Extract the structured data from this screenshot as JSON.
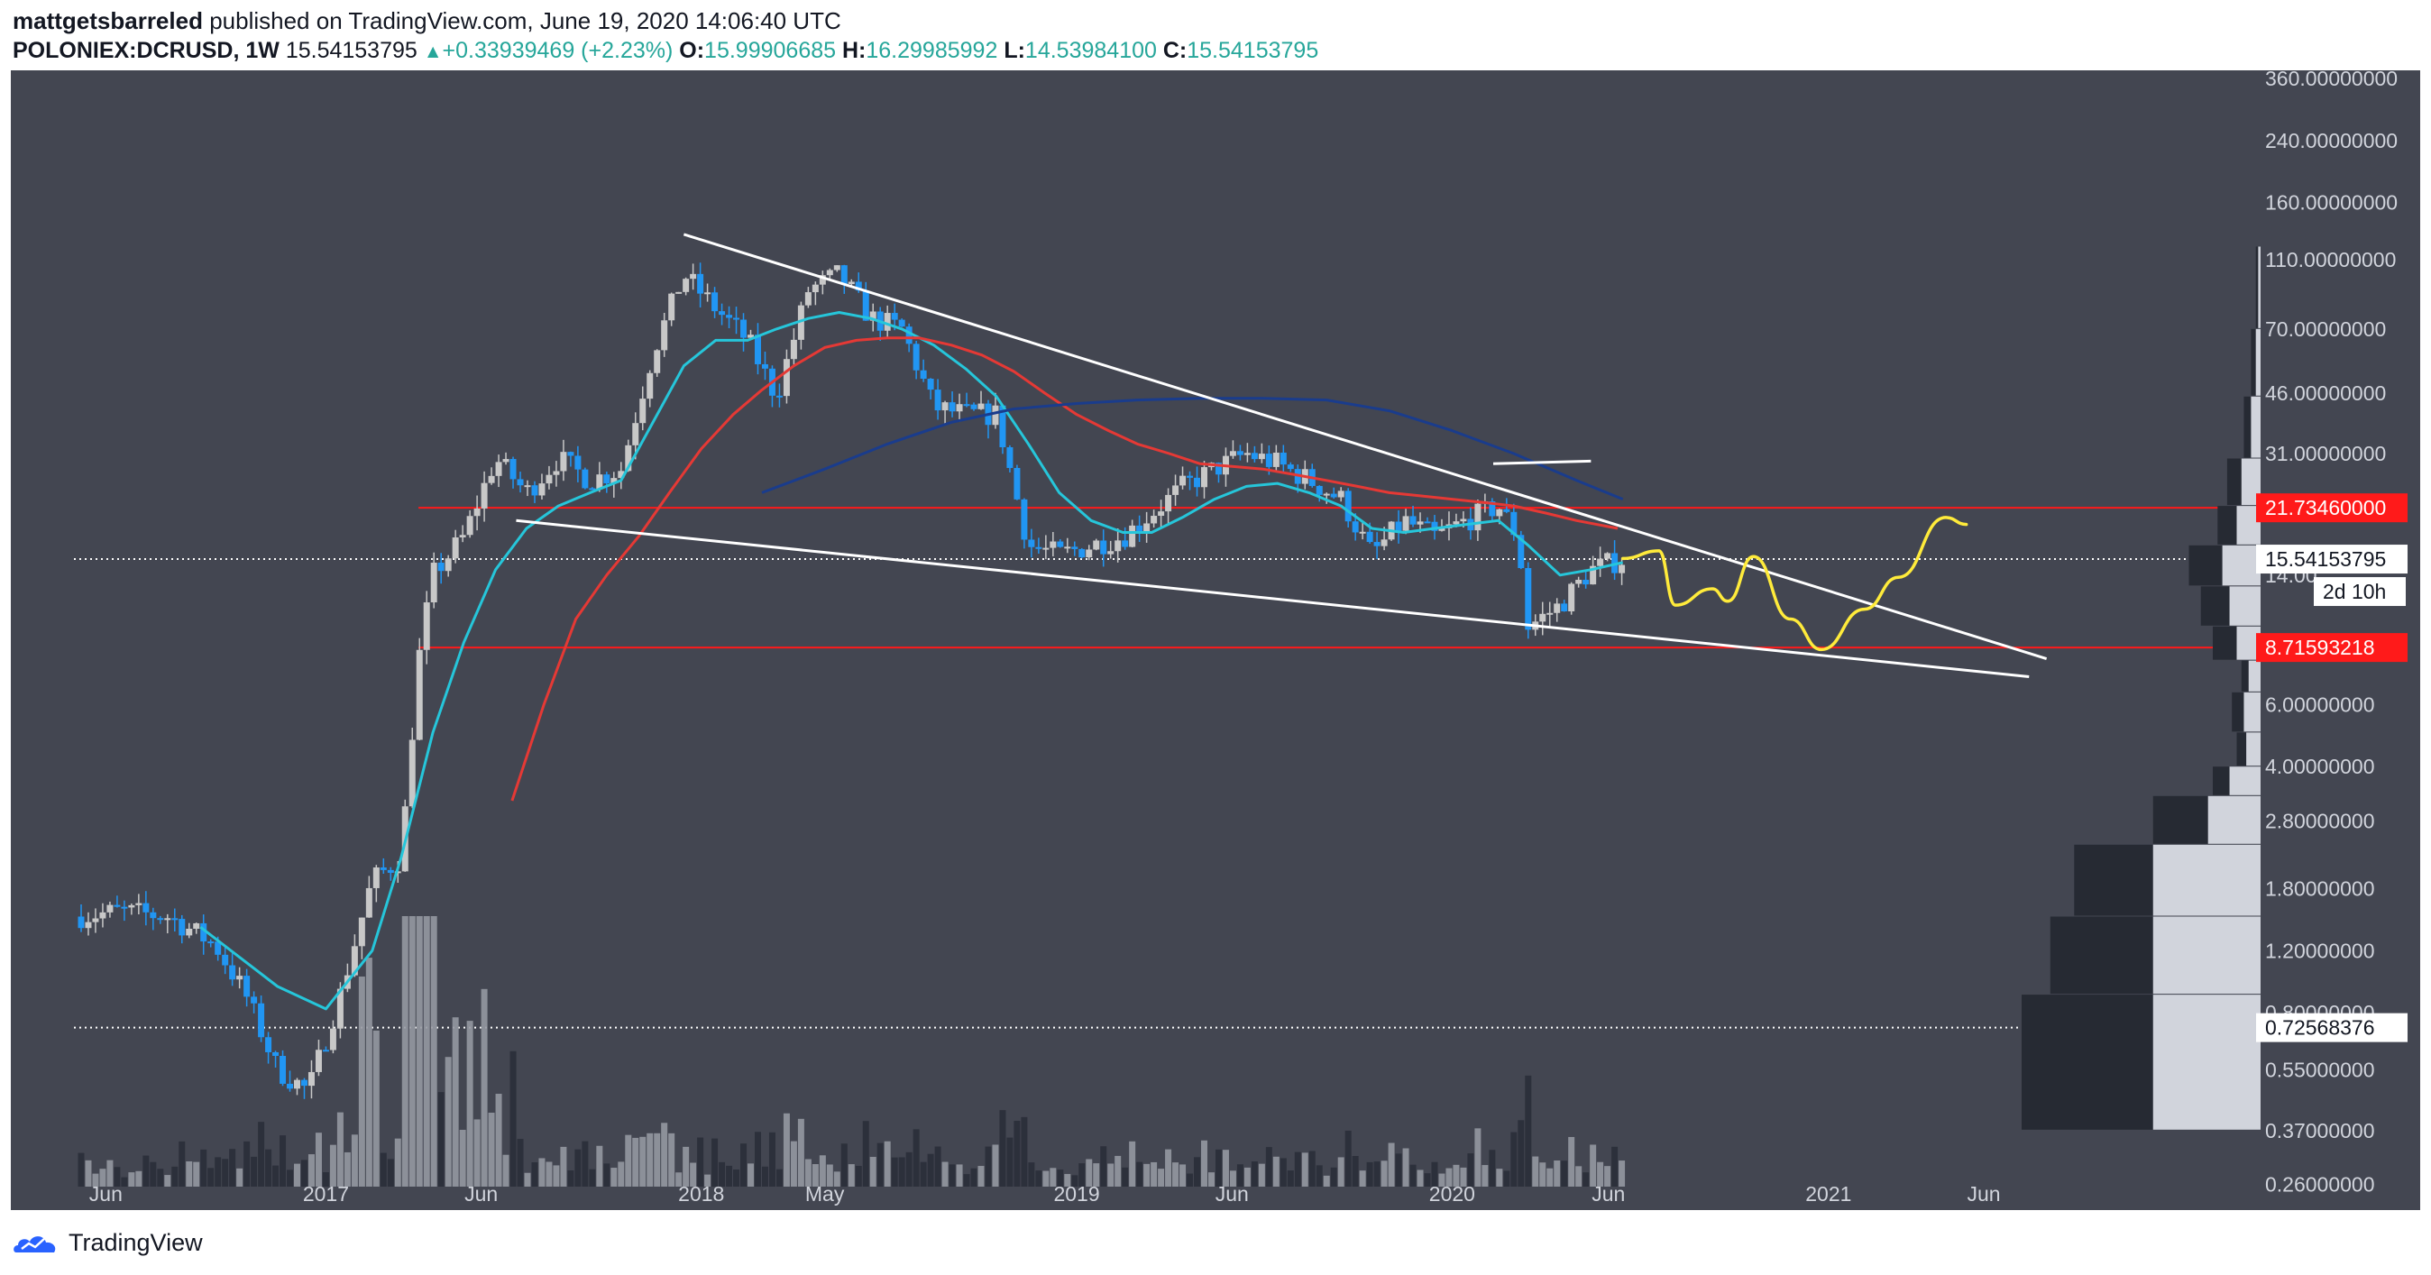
{
  "header": {
    "author": "mattgetsbarreled",
    "published": "published on TradingView.com, June 19, 2020 14:06:40 UTC",
    "symbol": "POLONIEX:DCRUSD, 1W",
    "last": "15.54153795",
    "change": "+0.33939469 (+2.23%)",
    "open_label": "O:",
    "open": "15.99906685",
    "high_label": "H:",
    "high": "16.29985992",
    "low_label": "L:",
    "low": "14.53984100",
    "close_label": "C:",
    "close": "15.54153795"
  },
  "footer": {
    "brand": "TradingView"
  },
  "colors": {
    "background": "#434651",
    "up": "#c8c8c8",
    "down": "#2196f3",
    "ema_short": "#26c6da",
    "ema_mid": "#e53935",
    "ema_long": "#1a3c8c",
    "trendline": "#ffffff",
    "projection": "#ffeb3b",
    "level": "#ff1a1a"
  },
  "chart_data": {
    "type": "candlestick",
    "title": "POLONIEX:DCRUSD, 1W",
    "y_scale": "log",
    "ylim": [
      0.22,
      380
    ],
    "grid": false,
    "x_ticks": [
      {
        "label": "Jun",
        "date": "2016-06-01"
      },
      {
        "label": "2017",
        "date": "2017-01-01"
      },
      {
        "label": "Jun",
        "date": "2017-06-01"
      },
      {
        "label": "2018",
        "date": "2018-01-01"
      },
      {
        "label": "May",
        "date": "2018-05-01"
      },
      {
        "label": "2019",
        "date": "2019-01-01"
      },
      {
        "label": "Jun",
        "date": "2019-06-01"
      },
      {
        "label": "2020",
        "date": "2020-01-01"
      },
      {
        "label": "Jun",
        "date": "2020-06-01"
      },
      {
        "label": "2021",
        "date": "2021-01-01"
      },
      {
        "label": "Jun",
        "date": "2021-06-01"
      }
    ],
    "y_ticks": [
      {
        "label": "360.00000000",
        "value": 360
      },
      {
        "label": "240.00000000",
        "value": 240
      },
      {
        "label": "160.00000000",
        "value": 160
      },
      {
        "label": "110.00000000",
        "value": 110
      },
      {
        "label": "70.00000000",
        "value": 70
      },
      {
        "label": "46.00000000",
        "value": 46
      },
      {
        "label": "31.00000000",
        "value": 31
      },
      {
        "label": "14.00",
        "value": 14
      },
      {
        "label": "6.00000000",
        "value": 6
      },
      {
        "label": "4.00000000",
        "value": 4
      },
      {
        "label": "2.80000000",
        "value": 2.8
      },
      {
        "label": "1.80000000",
        "value": 1.8
      },
      {
        "label": "1.20000000",
        "value": 1.2
      },
      {
        "label": "0.80000000",
        "value": 0.8
      },
      {
        "label": "0.55000000",
        "value": 0.55
      },
      {
        "label": "0.37000000",
        "value": 0.37
      },
      {
        "label": "0.26000000",
        "value": 0.26
      }
    ],
    "price_labels": [
      {
        "label": "21.73460000",
        "value": 21.7346,
        "style": "red"
      },
      {
        "label": "15.54153795",
        "value": 15.54153795,
        "style": "white"
      },
      {
        "label": "8.71593218",
        "value": 8.71593218,
        "style": "red"
      },
      {
        "label": "0.72568376",
        "value": 0.72568376,
        "style": "white"
      }
    ],
    "countdown": "2d 10h",
    "horizontal_levels": [
      {
        "value": 21.7346,
        "style": "red",
        "from": "2017-04-01",
        "to": "2021-12-31"
      },
      {
        "value": 8.71593218,
        "style": "red",
        "from": "2017-04-01",
        "to": "2021-12-31"
      },
      {
        "value": 15.54153795,
        "style": "dotted",
        "from": "2016-05-01",
        "to": "2021-12-31"
      },
      {
        "value": 0.72568376,
        "style": "dotted",
        "from": "2016-05-01",
        "to": "2021-12-31"
      }
    ],
    "trendlines": [
      {
        "points": [
          [
            "2017-12-15",
            130
          ],
          [
            "2021-08-01",
            8.1
          ]
        ]
      },
      {
        "points": [
          [
            "2017-07-05",
            20
          ],
          [
            "2021-07-15",
            7.2
          ]
        ]
      },
      {
        "points": [
          [
            "2020-02-10",
            29
          ],
          [
            "2020-05-15",
            29.5
          ]
        ]
      }
    ],
    "projection": [
      [
        "2020-06-15",
        15.6
      ],
      [
        "2020-07-20",
        16.4
      ],
      [
        "2020-08-05",
        11.5
      ],
      [
        "2020-09-10",
        12.8
      ],
      [
        "2020-09-25",
        11.8
      ],
      [
        "2020-10-20",
        15.8
      ],
      [
        "2020-11-25",
        10.5
      ],
      [
        "2020-12-25",
        8.6
      ],
      [
        "2021-02-05",
        11.2
      ],
      [
        "2021-03-10",
        13.8
      ],
      [
        "2021-04-25",
        20.4
      ],
      [
        "2021-05-15",
        19.5
      ]
    ],
    "price_series": [
      {
        "date": "2016-05-01",
        "value": 1.5
      },
      {
        "date": "2016-06-15",
        "value": 1.55
      },
      {
        "date": "2016-08-01",
        "value": 1.5
      },
      {
        "date": "2016-09-15",
        "value": 1.25
      },
      {
        "date": "2016-10-15",
        "value": 0.9
      },
      {
        "date": "2016-11-15",
        "value": 0.55
      },
      {
        "date": "2016-12-15",
        "value": 0.48
      },
      {
        "date": "2017-01-15",
        "value": 0.9
      },
      {
        "date": "2017-02-15",
        "value": 1.9
      },
      {
        "date": "2017-03-15",
        "value": 2.2
      },
      {
        "date": "2017-04-01",
        "value": 8
      },
      {
        "date": "2017-04-15",
        "value": 14
      },
      {
        "date": "2017-05-15",
        "value": 18
      },
      {
        "date": "2017-06-15",
        "value": 30
      },
      {
        "date": "2017-07-15",
        "value": 24
      },
      {
        "date": "2017-08-15",
        "value": 30
      },
      {
        "date": "2017-09-15",
        "value": 26
      },
      {
        "date": "2017-10-15",
        "value": 28
      },
      {
        "date": "2017-11-15",
        "value": 60
      },
      {
        "date": "2017-12-15",
        "value": 100
      },
      {
        "date": "2018-01-15",
        "value": 80
      },
      {
        "date": "2018-02-15",
        "value": 65
      },
      {
        "date": "2018-03-15",
        "value": 45
      },
      {
        "date": "2018-04-15",
        "value": 90
      },
      {
        "date": "2018-05-15",
        "value": 100
      },
      {
        "date": "2018-06-15",
        "value": 75
      },
      {
        "date": "2018-07-15",
        "value": 70
      },
      {
        "date": "2018-08-15",
        "value": 42
      },
      {
        "date": "2018-09-15",
        "value": 40
      },
      {
        "date": "2018-10-15",
        "value": 40
      },
      {
        "date": "2018-11-15",
        "value": 17
      },
      {
        "date": "2018-12-15",
        "value": 16
      },
      {
        "date": "2019-01-15",
        "value": 17
      },
      {
        "date": "2019-02-15",
        "value": 18
      },
      {
        "date": "2019-03-15",
        "value": 21
      },
      {
        "date": "2019-04-15",
        "value": 25
      },
      {
        "date": "2019-05-15",
        "value": 28
      },
      {
        "date": "2019-06-15",
        "value": 31
      },
      {
        "date": "2019-07-15",
        "value": 29
      },
      {
        "date": "2019-08-15",
        "value": 26
      },
      {
        "date": "2019-09-15",
        "value": 23
      },
      {
        "date": "2019-10-15",
        "value": 16
      },
      {
        "date": "2019-11-15",
        "value": 20
      },
      {
        "date": "2019-12-15",
        "value": 18
      },
      {
        "date": "2020-01-15",
        "value": 20
      },
      {
        "date": "2020-02-15",
        "value": 22
      },
      {
        "date": "2020-03-05",
        "value": 18
      },
      {
        "date": "2020-03-15",
        "value": 10
      },
      {
        "date": "2020-04-15",
        "value": 11.5
      },
      {
        "date": "2020-05-15",
        "value": 14.5
      },
      {
        "date": "2020-06-15",
        "value": 15.54
      }
    ],
    "moving_averages": [
      {
        "color_key": "ema_short",
        "points": [
          [
            "2016-09-01",
            1.4
          ],
          [
            "2016-11-15",
            0.95
          ],
          [
            "2017-01-01",
            0.82
          ],
          [
            "2017-02-15",
            1.2
          ],
          [
            "2017-03-15",
            2.2
          ],
          [
            "2017-04-15",
            5
          ],
          [
            "2017-05-15",
            9
          ],
          [
            "2017-06-15",
            14.5
          ],
          [
            "2017-07-15",
            19
          ],
          [
            "2017-08-15",
            22
          ],
          [
            "2017-09-15",
            24
          ],
          [
            "2017-10-15",
            26
          ],
          [
            "2017-11-15",
            38
          ],
          [
            "2017-12-15",
            55
          ],
          [
            "2018-01-15",
            65
          ],
          [
            "2018-02-15",
            65
          ],
          [
            "2018-03-15",
            70
          ],
          [
            "2018-04-15",
            75
          ],
          [
            "2018-05-15",
            78
          ],
          [
            "2018-06-15",
            75
          ],
          [
            "2018-07-15",
            70
          ],
          [
            "2018-08-15",
            63
          ],
          [
            "2018-09-15",
            54
          ],
          [
            "2018-10-15",
            45
          ],
          [
            "2018-11-15",
            33
          ],
          [
            "2018-12-15",
            24
          ],
          [
            "2019-01-15",
            20
          ],
          [
            "2019-02-15",
            18.5
          ],
          [
            "2019-03-15",
            18.5
          ],
          [
            "2019-04-15",
            20.5
          ],
          [
            "2019-05-15",
            23
          ],
          [
            "2019-06-15",
            25
          ],
          [
            "2019-07-15",
            25.5
          ],
          [
            "2019-08-15",
            24
          ],
          [
            "2019-09-15",
            22
          ],
          [
            "2019-10-15",
            19
          ],
          [
            "2019-11-15",
            18.5
          ],
          [
            "2019-12-15",
            19
          ],
          [
            "2020-01-15",
            19.5
          ],
          [
            "2020-02-15",
            20
          ],
          [
            "2020-03-15",
            17
          ],
          [
            "2020-04-15",
            14
          ],
          [
            "2020-05-15",
            14.5
          ],
          [
            "2020-06-15",
            15.2
          ]
        ]
      },
      {
        "color_key": "ema_mid",
        "points": [
          [
            "2017-07-01",
            3.2
          ],
          [
            "2017-08-01",
            6
          ],
          [
            "2017-09-01",
            10.5
          ],
          [
            "2017-10-01",
            14
          ],
          [
            "2017-11-01",
            18
          ],
          [
            "2017-12-01",
            24
          ],
          [
            "2018-01-01",
            32
          ],
          [
            "2018-02-01",
            40
          ],
          [
            "2018-03-01",
            47
          ],
          [
            "2018-04-01",
            55
          ],
          [
            "2018-05-01",
            62
          ],
          [
            "2018-06-01",
            65
          ],
          [
            "2018-07-01",
            66
          ],
          [
            "2018-08-01",
            66
          ],
          [
            "2018-09-01",
            63
          ],
          [
            "2018-10-01",
            59
          ],
          [
            "2018-11-01",
            53
          ],
          [
            "2018-12-01",
            46
          ],
          [
            "2019-01-01",
            40
          ],
          [
            "2019-02-01",
            36
          ],
          [
            "2019-03-01",
            33
          ],
          [
            "2019-04-01",
            31
          ],
          [
            "2019-05-01",
            29
          ],
          [
            "2019-06-01",
            28.5
          ],
          [
            "2019-07-01",
            28
          ],
          [
            "2019-08-01",
            27
          ],
          [
            "2019-09-01",
            26
          ],
          [
            "2019-10-01",
            25
          ],
          [
            "2019-11-01",
            24
          ],
          [
            "2019-12-01",
            23.5
          ],
          [
            "2020-01-01",
            23
          ],
          [
            "2020-02-01",
            22.5
          ],
          [
            "2020-03-01",
            22
          ],
          [
            "2020-04-01",
            21
          ],
          [
            "2020-05-01",
            20
          ],
          [
            "2020-06-10",
            19
          ]
        ]
      },
      {
        "color_key": "ema_long",
        "points": [
          [
            "2018-03-01",
            24
          ],
          [
            "2018-05-01",
            28
          ],
          [
            "2018-07-01",
            33
          ],
          [
            "2018-09-01",
            38
          ],
          [
            "2018-11-01",
            41.5
          ],
          [
            "2019-01-01",
            43
          ],
          [
            "2019-03-01",
            44
          ],
          [
            "2019-05-01",
            44.5
          ],
          [
            "2019-07-01",
            44.5
          ],
          [
            "2019-09-01",
            44
          ],
          [
            "2019-11-01",
            41
          ],
          [
            "2020-01-01",
            36
          ],
          [
            "2020-03-01",
            31
          ],
          [
            "2020-05-01",
            26
          ],
          [
            "2020-06-15",
            23
          ]
        ]
      }
    ],
    "volume_profile": [
      {
        "low": 0.37,
        "high": 0.9,
        "total": 1.0,
        "buy": 0.45
      },
      {
        "low": 0.9,
        "high": 1.5,
        "total": 0.88,
        "buy": 0.45
      },
      {
        "low": 1.5,
        "high": 2.4,
        "total": 0.78,
        "buy": 0.45
      },
      {
        "low": 2.4,
        "high": 3.3,
        "total": 0.45,
        "buy": 0.22
      },
      {
        "low": 3.3,
        "high": 4.0,
        "total": 0.2,
        "buy": 0.13
      },
      {
        "low": 4.0,
        "high": 5.0,
        "total": 0.1,
        "buy": 0.06
      },
      {
        "low": 5.0,
        "high": 6.5,
        "total": 0.12,
        "buy": 0.07
      },
      {
        "low": 6.5,
        "high": 8.0,
        "total": 0.08,
        "buy": 0.05
      },
      {
        "low": 8.0,
        "high": 10,
        "total": 0.2,
        "buy": 0.1
      },
      {
        "low": 10,
        "high": 13,
        "total": 0.25,
        "buy": 0.13
      },
      {
        "low": 13,
        "high": 17,
        "total": 0.3,
        "buy": 0.16
      },
      {
        "low": 17,
        "high": 22,
        "total": 0.18,
        "buy": 0.1
      },
      {
        "low": 22,
        "high": 30,
        "total": 0.14,
        "buy": 0.08
      },
      {
        "low": 30,
        "high": 45,
        "total": 0.07,
        "buy": 0.04
      },
      {
        "low": 45,
        "high": 70,
        "total": 0.04,
        "buy": 0.02
      },
      {
        "low": 70,
        "high": 120,
        "total": 0.02,
        "buy": 0.01
      }
    ]
  }
}
